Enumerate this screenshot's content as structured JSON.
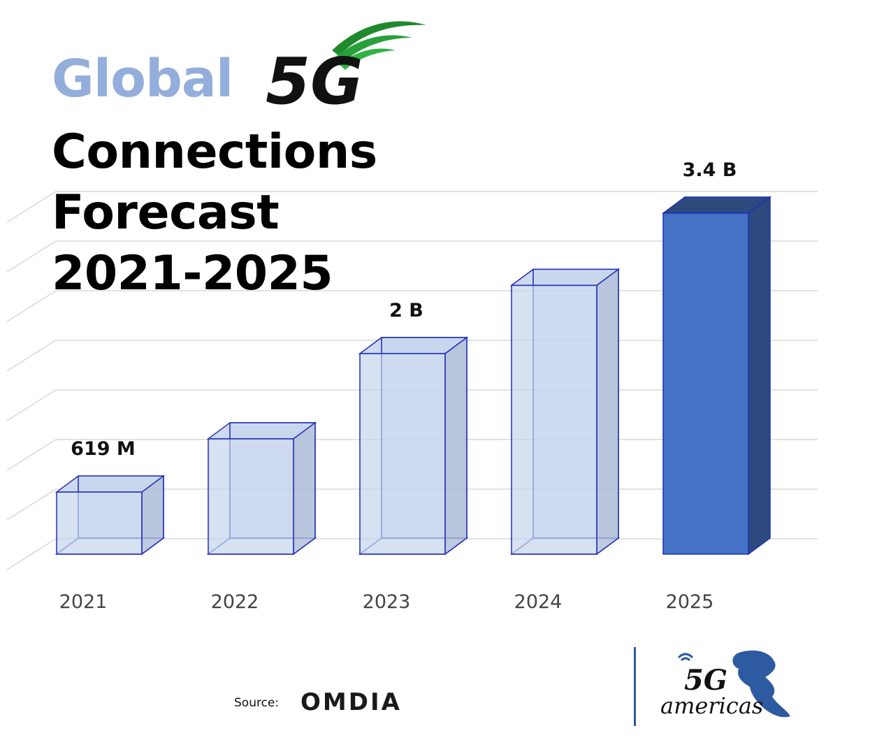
{
  "header": {
    "title_word1": "Global",
    "logo_text": "5G",
    "title_line1": "Connections",
    "title_line2": "Forecast",
    "title_line3": "2021-2025"
  },
  "chart_data": {
    "type": "bar",
    "categories": [
      "2021",
      "2022",
      "2023",
      "2024",
      "2025"
    ],
    "values": [
      0.619,
      1.15,
      2.0,
      2.68,
      3.4
    ],
    "data_labels": [
      "619 M",
      "",
      "2 B",
      "",
      "3.4 B"
    ],
    "ylim": [
      0,
      3.7
    ],
    "grid": true,
    "highlight_index": 4,
    "colors": {
      "bar_fill": "#c5d4ec",
      "bar_edge": "#1f2fb8",
      "highlight_front": "#4472c4",
      "highlight_side": "#2c4a7e",
      "grid": "#d9d9d9"
    }
  },
  "footer": {
    "source_label": "Source:",
    "source_name": "OMDIA",
    "partner_logo": "5G americas"
  }
}
